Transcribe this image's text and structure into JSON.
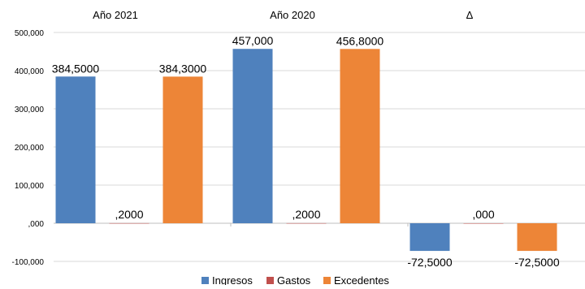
{
  "chart_data": {
    "type": "bar",
    "categories": [
      "Año 2021",
      "Año 2020",
      "Δ"
    ],
    "series": [
      {
        "name": "Ingresos",
        "color": "#4f81bd",
        "values": [
          384.5,
          457.0,
          -72.5
        ],
        "labels": [
          "384,5000",
          "457,000",
          "-72,5000"
        ]
      },
      {
        "name": "Gastos",
        "color": "#c0504d",
        "values": [
          0.2,
          0.2,
          0.0
        ],
        "labels": [
          ",2000",
          ",2000",
          ",000"
        ]
      },
      {
        "name": "Excedentes",
        "color": "#ed8537",
        "values": [
          384.3,
          456.8,
          -72.5
        ],
        "labels": [
          "384,3000",
          "456,8000",
          "-72,5000"
        ]
      }
    ],
    "ylim": [
      -100,
      500
    ],
    "yticks": [
      -100,
      0,
      100,
      200,
      300,
      400,
      500
    ],
    "ytick_labels": [
      "-100,000",
      ",000",
      "100,000",
      "200,000",
      "300,000",
      "400,000",
      "500,000"
    ],
    "grid": true,
    "legend": "bottom",
    "title": "",
    "xlabel": "",
    "ylabel": ""
  }
}
